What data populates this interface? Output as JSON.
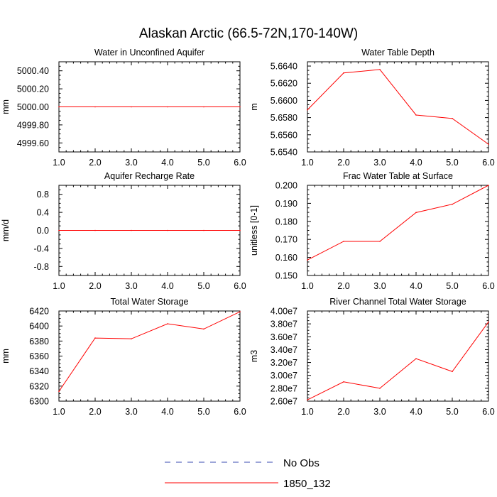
{
  "title": "Alaskan Arctic (66.5-72N,170-140W)",
  "legend": {
    "no_obs_label": "No Obs",
    "no_obs_color": "#3a4bb0",
    "model_label": "1850_132",
    "model_color": "#ff0000"
  },
  "chart_data": [
    {
      "type": "line",
      "title": "Water in Unconfined Aquifer",
      "ylabel": "mm",
      "x": [
        1,
        2,
        3,
        4,
        5,
        6
      ],
      "xlim": [
        1,
        6
      ],
      "xticks": [
        "1.0",
        "2.0",
        "3.0",
        "4.0",
        "5.0",
        "6.0"
      ],
      "ylim": [
        4999.5,
        5000.5
      ],
      "yticks": [
        4999.6,
        4999.8,
        5000.0,
        5000.2,
        5000.4
      ],
      "ytick_labels": [
        "4999.60",
        "4999.80",
        "5000.00",
        "5000.20",
        "5000.40"
      ],
      "series": [
        {
          "name": "1850_132",
          "values": [
            5000.0,
            5000.0,
            5000.0,
            5000.0,
            5000.0,
            5000.0
          ]
        }
      ]
    },
    {
      "type": "line",
      "title": "Water Table Depth",
      "ylabel": "m",
      "x": [
        1,
        2,
        3,
        4,
        5,
        6
      ],
      "xlim": [
        1,
        6
      ],
      "xticks": [
        "1.0",
        "2.0",
        "3.0",
        "4.0",
        "5.0",
        "6.0"
      ],
      "ylim": [
        5.654,
        5.6645
      ],
      "yticks": [
        5.654,
        5.656,
        5.658,
        5.66,
        5.662,
        5.664
      ],
      "ytick_labels": [
        "5.6540",
        "5.6560",
        "5.6580",
        "5.6600",
        "5.6620",
        "5.6640"
      ],
      "series": [
        {
          "name": "1850_132",
          "values": [
            5.6589,
            5.6632,
            5.6636,
            5.6583,
            5.6579,
            5.6549
          ]
        }
      ]
    },
    {
      "type": "line",
      "title": "Aquifer Recharge Rate",
      "ylabel": "mm/d",
      "x": [
        1,
        2,
        3,
        4,
        5,
        6
      ],
      "xlim": [
        1,
        6
      ],
      "xticks": [
        "1.0",
        "2.0",
        "3.0",
        "4.0",
        "5.0",
        "6.0"
      ],
      "ylim": [
        -1.0,
        1.0
      ],
      "yticks": [
        -0.8,
        -0.4,
        0.0,
        0.4,
        0.8
      ],
      "ytick_labels": [
        "-0.8",
        "-0.4",
        "0.0",
        "0.4",
        "0.8"
      ],
      "series": [
        {
          "name": "1850_132",
          "values": [
            0,
            0,
            0,
            0,
            0,
            0
          ]
        }
      ]
    },
    {
      "type": "line",
      "title": "Frac Water Table at Surface",
      "ylabel": "unitless [0-1]",
      "x": [
        1,
        2,
        3,
        4,
        5,
        6
      ],
      "xlim": [
        1,
        6
      ],
      "xticks": [
        "1.0",
        "2.0",
        "3.0",
        "4.0",
        "5.0",
        "6.0"
      ],
      "ylim": [
        0.15,
        0.2
      ],
      "yticks": [
        0.15,
        0.16,
        0.17,
        0.18,
        0.19,
        0.2
      ],
      "ytick_labels": [
        "0.150",
        "0.160",
        "0.170",
        "0.180",
        "0.190",
        "0.200"
      ],
      "series": [
        {
          "name": "1850_132",
          "values": [
            0.1586,
            0.1689,
            0.1689,
            0.1849,
            0.1895,
            0.2
          ]
        }
      ]
    },
    {
      "type": "line",
      "title": "Total Water Storage",
      "ylabel": "mm",
      "x": [
        1,
        2,
        3,
        4,
        5,
        6
      ],
      "xlim": [
        1,
        6
      ],
      "xticks": [
        "1.0",
        "2.0",
        "3.0",
        "4.0",
        "5.0",
        "6.0"
      ],
      "ylim": [
        6300,
        6420
      ],
      "yticks": [
        6300,
        6320,
        6340,
        6360,
        6380,
        6400,
        6420
      ],
      "ytick_labels": [
        "6300",
        "6320",
        "6340",
        "6360",
        "6380",
        "6400",
        "6420"
      ],
      "series": [
        {
          "name": "1850_132",
          "values": [
            6313,
            6384,
            6383,
            6403,
            6396,
            6419
          ]
        }
      ]
    },
    {
      "type": "line",
      "title": "River Channel Total Water Storage",
      "ylabel": "m3",
      "x": [
        1,
        2,
        3,
        4,
        5,
        6
      ],
      "xlim": [
        1,
        6
      ],
      "xticks": [
        "1.0",
        "2.0",
        "3.0",
        "4.0",
        "5.0",
        "6.0"
      ],
      "ylim": [
        26000000,
        40000000
      ],
      "yticks": [
        26000000,
        28000000,
        30000000,
        32000000,
        34000000,
        36000000,
        38000000,
        40000000
      ],
      "ytick_labels": [
        "2.60e7",
        "2.80e7",
        "3.00e7",
        "3.20e7",
        "3.40e7",
        "3.60e7",
        "3.80e7",
        "4.00e7"
      ],
      "series": [
        {
          "name": "1850_132",
          "values": [
            26200000,
            29000000,
            28000000,
            32600000,
            30600000,
            38300000
          ]
        }
      ]
    }
  ]
}
